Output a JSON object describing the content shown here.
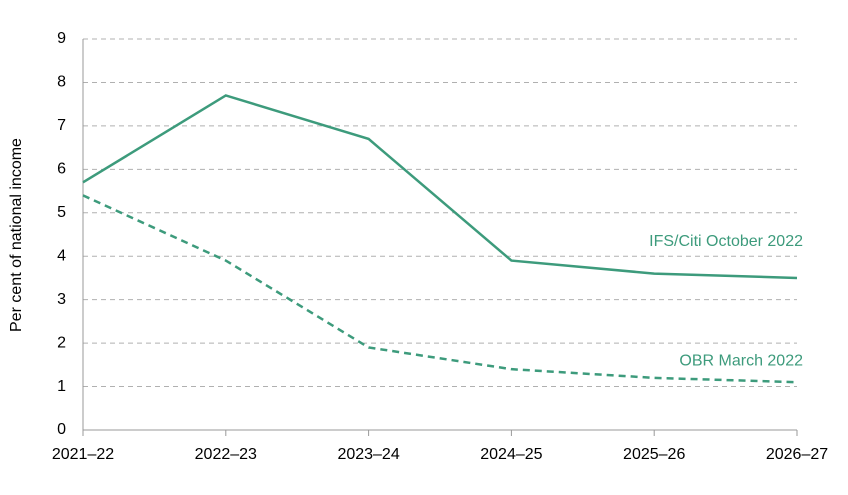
{
  "chart_data": {
    "type": "line",
    "y_label": "Per cent of national income",
    "categories": [
      "2021–22",
      "2022–23",
      "2023–24",
      "2024–25",
      "2025–26",
      "2026–27"
    ],
    "series": [
      {
        "name": "IFS/Citi October 2022",
        "color": "#3d9b7c",
        "line_style": "solid",
        "values": [
          5.7,
          7.7,
          6.7,
          3.9,
          3.6,
          3.5
        ]
      },
      {
        "name": "OBR March 2022",
        "color": "#3d9b7c",
        "line_style": "dashed",
        "values": [
          5.4,
          3.9,
          1.9,
          1.4,
          1.2,
          1.1
        ]
      }
    ],
    "ylim": [
      0,
      9
    ],
    "yticks": [
      0,
      1,
      2,
      3,
      4,
      5,
      6,
      7,
      8,
      9
    ],
    "grid": true
  }
}
